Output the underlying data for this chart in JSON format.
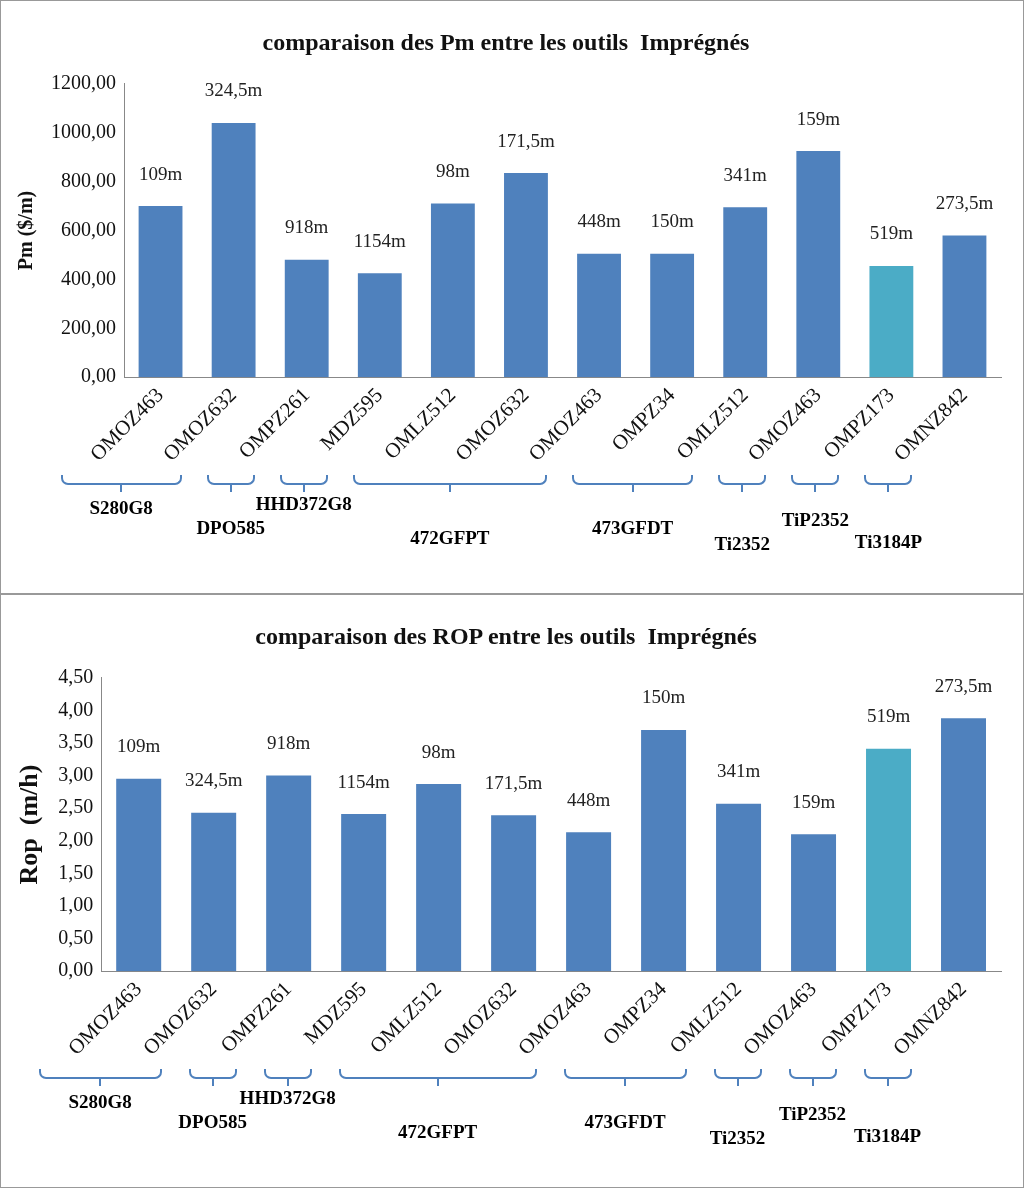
{
  "chart_data": [
    {
      "type": "bar",
      "title": "comparaison des Pm entre les outils  Imprégnés",
      "ylabel": "Pm ($/m)",
      "categories": [
        "OMOZ463",
        "OMOZ632",
        "OMPZ261",
        "MDZ595",
        "OMLZ512",
        "OMOZ632",
        "OMOZ463",
        "OMPZ34",
        "OMLZ512",
        "OMOZ463",
        "OMPZ173",
        "OMNZ842"
      ],
      "values": [
        700,
        1040,
        480,
        425,
        710,
        835,
        505,
        505,
        695,
        925,
        455,
        580
      ],
      "colors": [
        "#4f81bd",
        "#4f81bd",
        "#4f81bd",
        "#4f81bd",
        "#4f81bd",
        "#4f81bd",
        "#4f81bd",
        "#4f81bd",
        "#4f81bd",
        "#4f81bd",
        "#4bacc6",
        "#4f81bd"
      ],
      "ylim": [
        0,
        1200
      ],
      "yticks": [
        {
          "value": 0,
          "label": "0,00"
        },
        {
          "value": 200,
          "label": "200,00"
        },
        {
          "value": 400,
          "label": "400,00"
        },
        {
          "value": 600,
          "label": "600,00"
        },
        {
          "value": 800,
          "label": "800,00"
        },
        {
          "value": 1000,
          "label": "1000,00"
        },
        {
          "value": 1200,
          "label": "1200,00"
        }
      ],
      "grid": false,
      "legend": false,
      "annotations": [
        "S280G8",
        "DPO585",
        "HHD372G8",
        "472GFPT",
        "473GFDT",
        "Ti2352",
        "TiP2352",
        "Ti3184P",
        "109m",
        "324,5m",
        "918m",
        "1154m",
        "98m",
        "171,5m",
        "448m",
        "150m",
        "341m",
        "159m",
        "519m",
        "273,5m"
      ]
    },
    {
      "type": "bar",
      "title": "comparaison des ROP entre les outils  Imprégnés",
      "ylabel": "Rop  (m/h)",
      "categories": [
        "OMOZ463",
        "OMOZ632",
        "OMPZ261",
        "MDZ595",
        "OMLZ512",
        "OMOZ632",
        "OMOZ463",
        "OMPZ34",
        "OMLZ512",
        "OMOZ463",
        "OMPZ173",
        "OMNZ842"
      ],
      "values": [
        2.95,
        2.43,
        3.0,
        2.41,
        2.87,
        2.39,
        2.13,
        3.7,
        2.57,
        2.1,
        3.41,
        3.88
      ],
      "colors": [
        "#4f81bd",
        "#4f81bd",
        "#4f81bd",
        "#4f81bd",
        "#4f81bd",
        "#4f81bd",
        "#4f81bd",
        "#4f81bd",
        "#4f81bd",
        "#4f81bd",
        "#4bacc6",
        "#4f81bd"
      ],
      "ylim": [
        0,
        4.5
      ],
      "yticks": [
        {
          "value": 0,
          "label": "0,00"
        },
        {
          "value": 0.5,
          "label": "0,50"
        },
        {
          "value": 1,
          "label": "1,00"
        },
        {
          "value": 1.5,
          "label": "1,50"
        },
        {
          "value": 2,
          "label": "2,00"
        },
        {
          "value": 2.5,
          "label": "2,50"
        },
        {
          "value": 3,
          "label": "3,00"
        },
        {
          "value": 3.5,
          "label": "3,50"
        },
        {
          "value": 4,
          "label": "4,00"
        },
        {
          "value": 4.5,
          "label": "4,50"
        }
      ],
      "grid": false,
      "legend": false,
      "annotations": [
        "S280G8",
        "DPO585",
        "HHD372G8",
        "472GFPT",
        "473GFDT",
        "Ti2352",
        "TiP2352",
        "Ti3184P",
        "109m",
        "324,5m",
        "918m",
        "1154m",
        "98m",
        "171,5m",
        "448m",
        "150m",
        "341m",
        "159m",
        "519m",
        "273,5m"
      ]
    }
  ]
}
